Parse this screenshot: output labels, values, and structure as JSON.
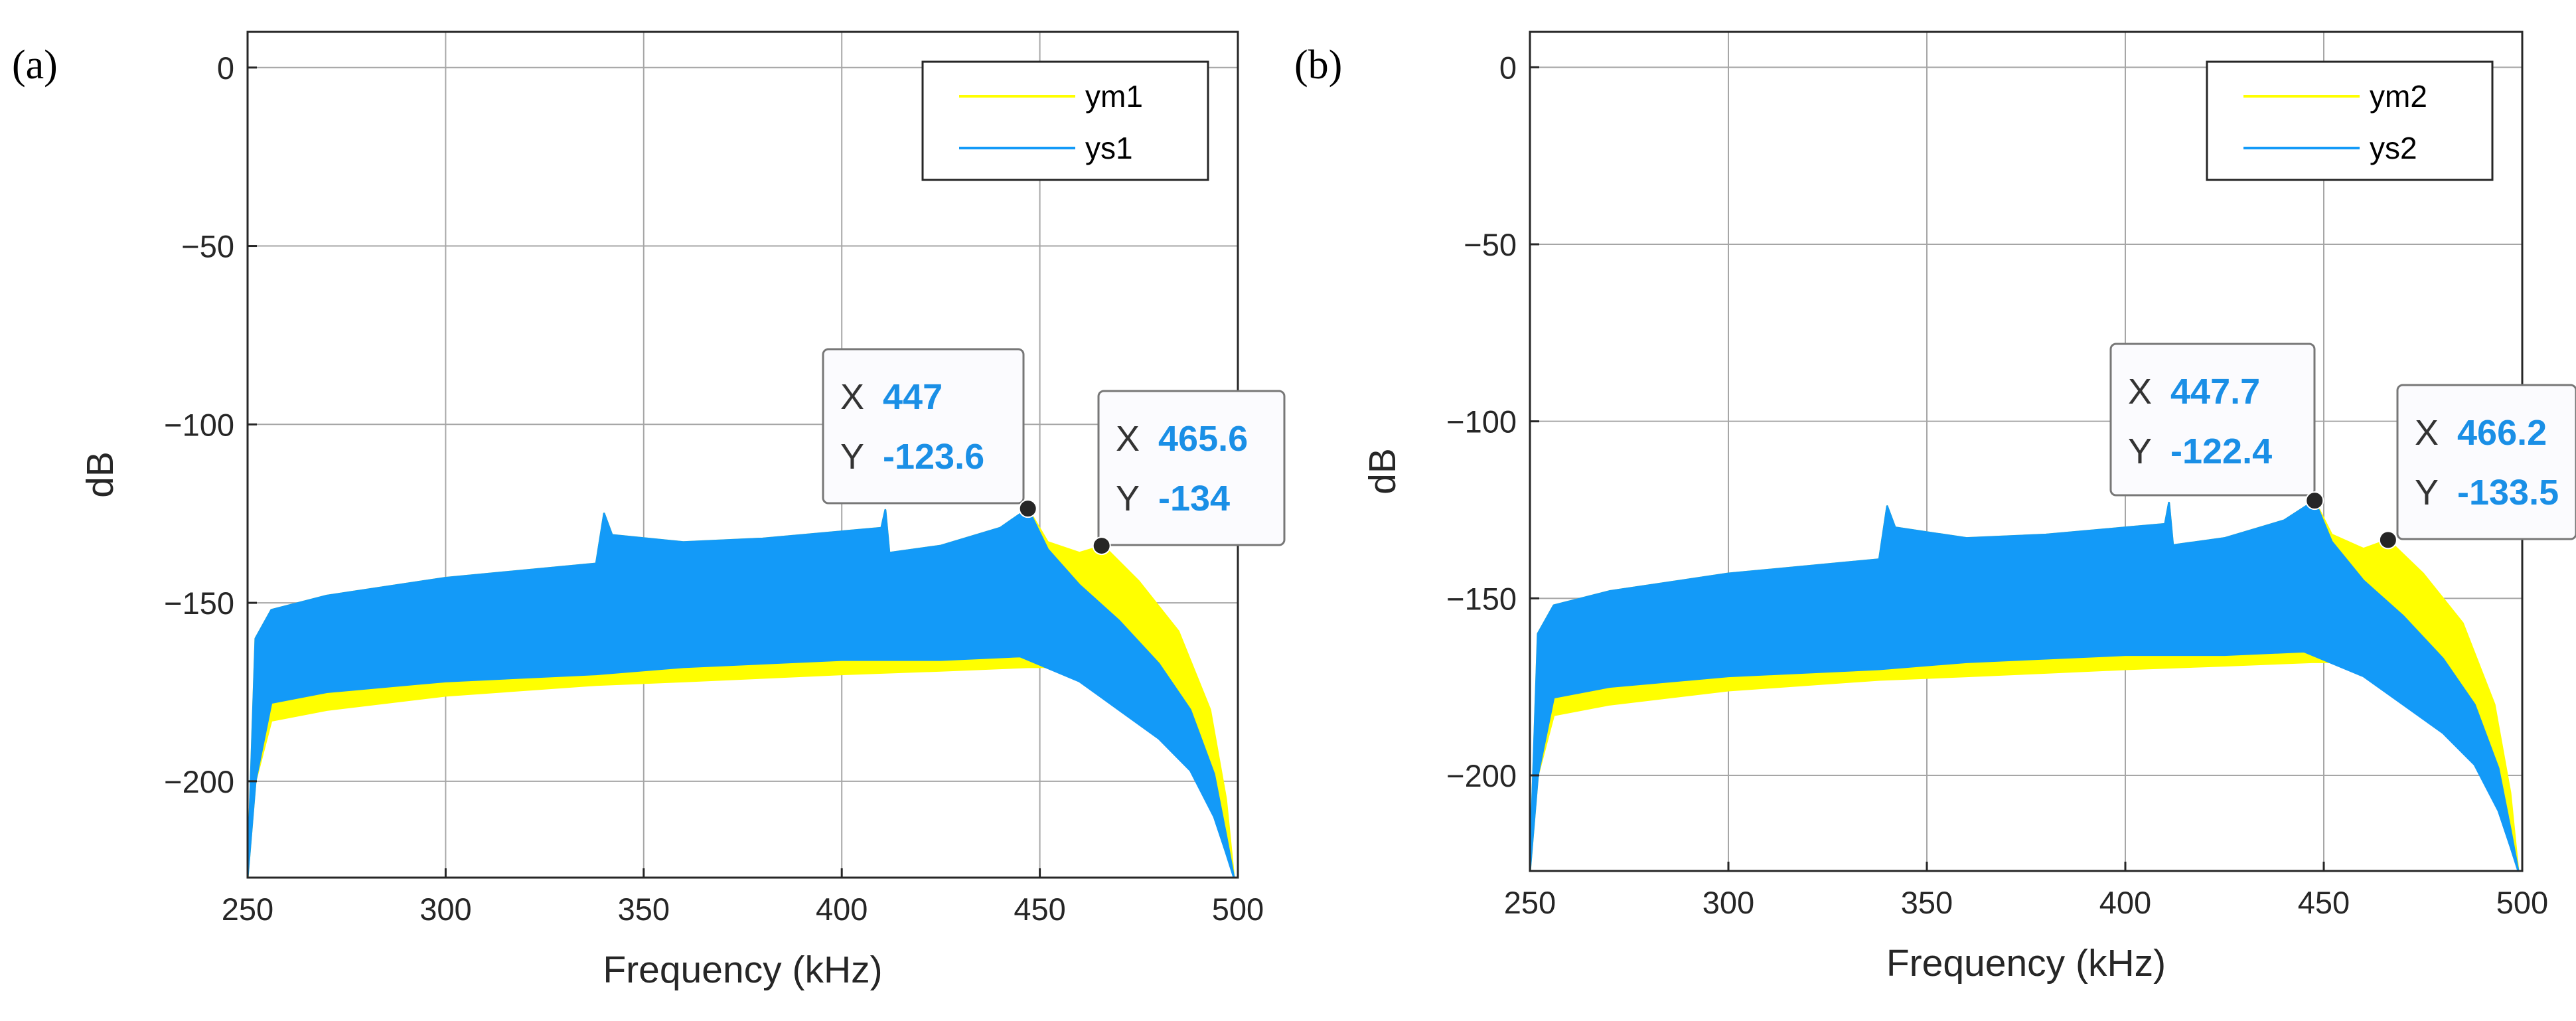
{
  "colors": {
    "measured": "#ffff00",
    "simulated": "#139af8",
    "grid": "#a6a6a6",
    "tip_value": "#1a8fe6"
  },
  "chart_data": [
    {
      "type": "line",
      "panel_label": "(a)",
      "xlabel": "Frequency (kHz)",
      "ylabel": "dB",
      "xlim": [
        250,
        500
      ],
      "ylim": [
        -227,
        10
      ],
      "xticks": [
        250,
        300,
        350,
        400,
        450,
        500
      ],
      "yticks": [
        0,
        -50,
        -100,
        -150,
        -200
      ],
      "xtick_labels": [
        "250",
        "300",
        "350",
        "400",
        "450",
        "500"
      ],
      "ytick_labels": [
        "0",
        "−50",
        "−100",
        "−150",
        "−200"
      ],
      "grid": true,
      "legend_position": "top-right",
      "series": [
        {
          "name": "ym1",
          "color": "#ffff00",
          "upper": [
            [
              250,
              -227
            ],
            [
              252,
              -160
            ],
            [
              256,
              -152
            ],
            [
              270,
              -148
            ],
            [
              300,
              -143
            ],
            [
              338,
              -139
            ],
            [
              340,
              -125
            ],
            [
              342,
              -131
            ],
            [
              360,
              -133
            ],
            [
              380,
              -132
            ],
            [
              400,
              -130
            ],
            [
              410,
              -129
            ],
            [
              411,
              -124
            ],
            [
              412,
              -136
            ],
            [
              425,
              -134
            ],
            [
              440,
              -129
            ],
            [
              447,
              -123.6
            ],
            [
              452,
              -133
            ],
            [
              460,
              -136
            ],
            [
              466,
              -134
            ],
            [
              475,
              -144
            ],
            [
              485,
              -158
            ],
            [
              493,
              -180
            ],
            [
              497,
              -205
            ],
            [
              499,
              -227
            ]
          ],
          "lower": [
            [
              250,
              -227
            ],
            [
              252,
              -200
            ],
            [
              256,
              -183
            ],
            [
              270,
              -180
            ],
            [
              300,
              -176
            ],
            [
              338,
              -173
            ],
            [
              360,
              -172
            ],
            [
              380,
              -171
            ],
            [
              400,
              -170
            ],
            [
              425,
              -169
            ],
            [
              447,
              -168
            ],
            [
              460,
              -168
            ],
            [
              475,
              -172
            ],
            [
              485,
              -180
            ],
            [
              493,
              -195
            ],
            [
              497,
              -212
            ],
            [
              499,
              -227
            ]
          ]
        },
        {
          "name": "ys1",
          "color": "#139af8",
          "upper": [
            [
              250,
              -227
            ],
            [
              252,
              -160
            ],
            [
              256,
              -152
            ],
            [
              270,
              -148
            ],
            [
              300,
              -143
            ],
            [
              338,
              -139
            ],
            [
              340,
              -125
            ],
            [
              342,
              -131
            ],
            [
              360,
              -133
            ],
            [
              380,
              -132
            ],
            [
              400,
              -130
            ],
            [
              410,
              -129
            ],
            [
              411,
              -124
            ],
            [
              412,
              -136
            ],
            [
              425,
              -134
            ],
            [
              440,
              -129
            ],
            [
              447,
              -123.6
            ],
            [
              452,
              -135
            ],
            [
              460,
              -145
            ],
            [
              470,
              -155
            ],
            [
              480,
              -167
            ],
            [
              488,
              -180
            ],
            [
              494,
              -198
            ],
            [
              497,
              -215
            ],
            [
              499,
              -227
            ]
          ],
          "lower": [
            [
              250,
              -227
            ],
            [
              252,
              -200
            ],
            [
              256,
              -178
            ],
            [
              270,
              -175
            ],
            [
              300,
              -172
            ],
            [
              338,
              -170
            ],
            [
              360,
              -168
            ],
            [
              380,
              -167
            ],
            [
              400,
              -166
            ],
            [
              425,
              -166
            ],
            [
              445,
              -165
            ],
            [
              460,
              -172
            ],
            [
              470,
              -180
            ],
            [
              480,
              -188
            ],
            [
              488,
              -197
            ],
            [
              494,
              -210
            ],
            [
              497,
              -220
            ],
            [
              499,
              -227
            ]
          ]
        }
      ],
      "datatips": [
        {
          "x_key": "X",
          "x": "447",
          "y_key": "Y",
          "y": "-123.6",
          "px": 447,
          "py": -123.6
        },
        {
          "x_key": "X",
          "x": "465.6",
          "y_key": "Y",
          "y": "-134",
          "px": 465.6,
          "py": -134
        }
      ]
    },
    {
      "type": "line",
      "panel_label": "(b)",
      "xlabel": "Frequency (kHz)",
      "ylabel": "dB",
      "xlim": [
        250,
        500
      ],
      "ylim": [
        -227,
        10
      ],
      "xticks": [
        250,
        300,
        350,
        400,
        450,
        500
      ],
      "yticks": [
        0,
        -50,
        -100,
        -150,
        -200
      ],
      "xtick_labels": [
        "250",
        "300",
        "350",
        "400",
        "450",
        "500"
      ],
      "ytick_labels": [
        "0",
        "−50",
        "−100",
        "−150",
        "−200"
      ],
      "grid": true,
      "legend_position": "top-right",
      "series": [
        {
          "name": "ym2",
          "color": "#ffff00",
          "upper": [
            [
              250,
              -227
            ],
            [
              252,
              -160
            ],
            [
              256,
              -152
            ],
            [
              270,
              -148
            ],
            [
              300,
              -143
            ],
            [
              338,
              -139
            ],
            [
              340,
              -124
            ],
            [
              342,
              -130
            ],
            [
              360,
              -133
            ],
            [
              380,
              -132
            ],
            [
              400,
              -130
            ],
            [
              410,
              -129
            ],
            [
              411,
              -123
            ],
            [
              412,
              -135
            ],
            [
              425,
              -133
            ],
            [
              440,
              -128
            ],
            [
              447.7,
              -122.4
            ],
            [
              452,
              -132
            ],
            [
              460,
              -136
            ],
            [
              466.2,
              -133.5
            ],
            [
              475,
              -143
            ],
            [
              485,
              -157
            ],
            [
              493,
              -180
            ],
            [
              497,
              -205
            ],
            [
              499,
              -227
            ]
          ],
          "lower": [
            [
              250,
              -227
            ],
            [
              252,
              -200
            ],
            [
              256,
              -183
            ],
            [
              270,
              -180
            ],
            [
              300,
              -176
            ],
            [
              338,
              -173
            ],
            [
              360,
              -172
            ],
            [
              380,
              -171
            ],
            [
              400,
              -170
            ],
            [
              425,
              -169
            ],
            [
              447,
              -168
            ],
            [
              460,
              -168
            ],
            [
              475,
              -172
            ],
            [
              485,
              -180
            ],
            [
              493,
              -195
            ],
            [
              497,
              -212
            ],
            [
              499,
              -227
            ]
          ]
        },
        {
          "name": "ys2",
          "color": "#139af8",
          "upper": [
            [
              250,
              -227
            ],
            [
              252,
              -160
            ],
            [
              256,
              -152
            ],
            [
              270,
              -148
            ],
            [
              300,
              -143
            ],
            [
              338,
              -139
            ],
            [
              340,
              -124
            ],
            [
              342,
              -130
            ],
            [
              360,
              -133
            ],
            [
              380,
              -132
            ],
            [
              400,
              -130
            ],
            [
              410,
              -129
            ],
            [
              411,
              -123
            ],
            [
              412,
              -135
            ],
            [
              425,
              -133
            ],
            [
              440,
              -128
            ],
            [
              447.7,
              -122.4
            ],
            [
              452,
              -134
            ],
            [
              460,
              -145
            ],
            [
              470,
              -155
            ],
            [
              480,
              -167
            ],
            [
              488,
              -180
            ],
            [
              494,
              -198
            ],
            [
              497,
              -215
            ],
            [
              499,
              -227
            ]
          ],
          "lower": [
            [
              250,
              -227
            ],
            [
              252,
              -200
            ],
            [
              256,
              -178
            ],
            [
              270,
              -175
            ],
            [
              300,
              -172
            ],
            [
              338,
              -170
            ],
            [
              360,
              -168
            ],
            [
              380,
              -167
            ],
            [
              400,
              -166
            ],
            [
              425,
              -166
            ],
            [
              445,
              -165
            ],
            [
              460,
              -172
            ],
            [
              470,
              -180
            ],
            [
              480,
              -188
            ],
            [
              488,
              -197
            ],
            [
              494,
              -210
            ],
            [
              497,
              -220
            ],
            [
              499,
              -227
            ]
          ]
        }
      ],
      "datatips": [
        {
          "x_key": "X",
          "x": "447.7",
          "y_key": "Y",
          "y": "-122.4",
          "px": 447.7,
          "py": -122.4
        },
        {
          "x_key": "X",
          "x": "466.2",
          "y_key": "Y",
          "y": "-133.5",
          "px": 466.2,
          "py": -133.5
        }
      ]
    }
  ]
}
